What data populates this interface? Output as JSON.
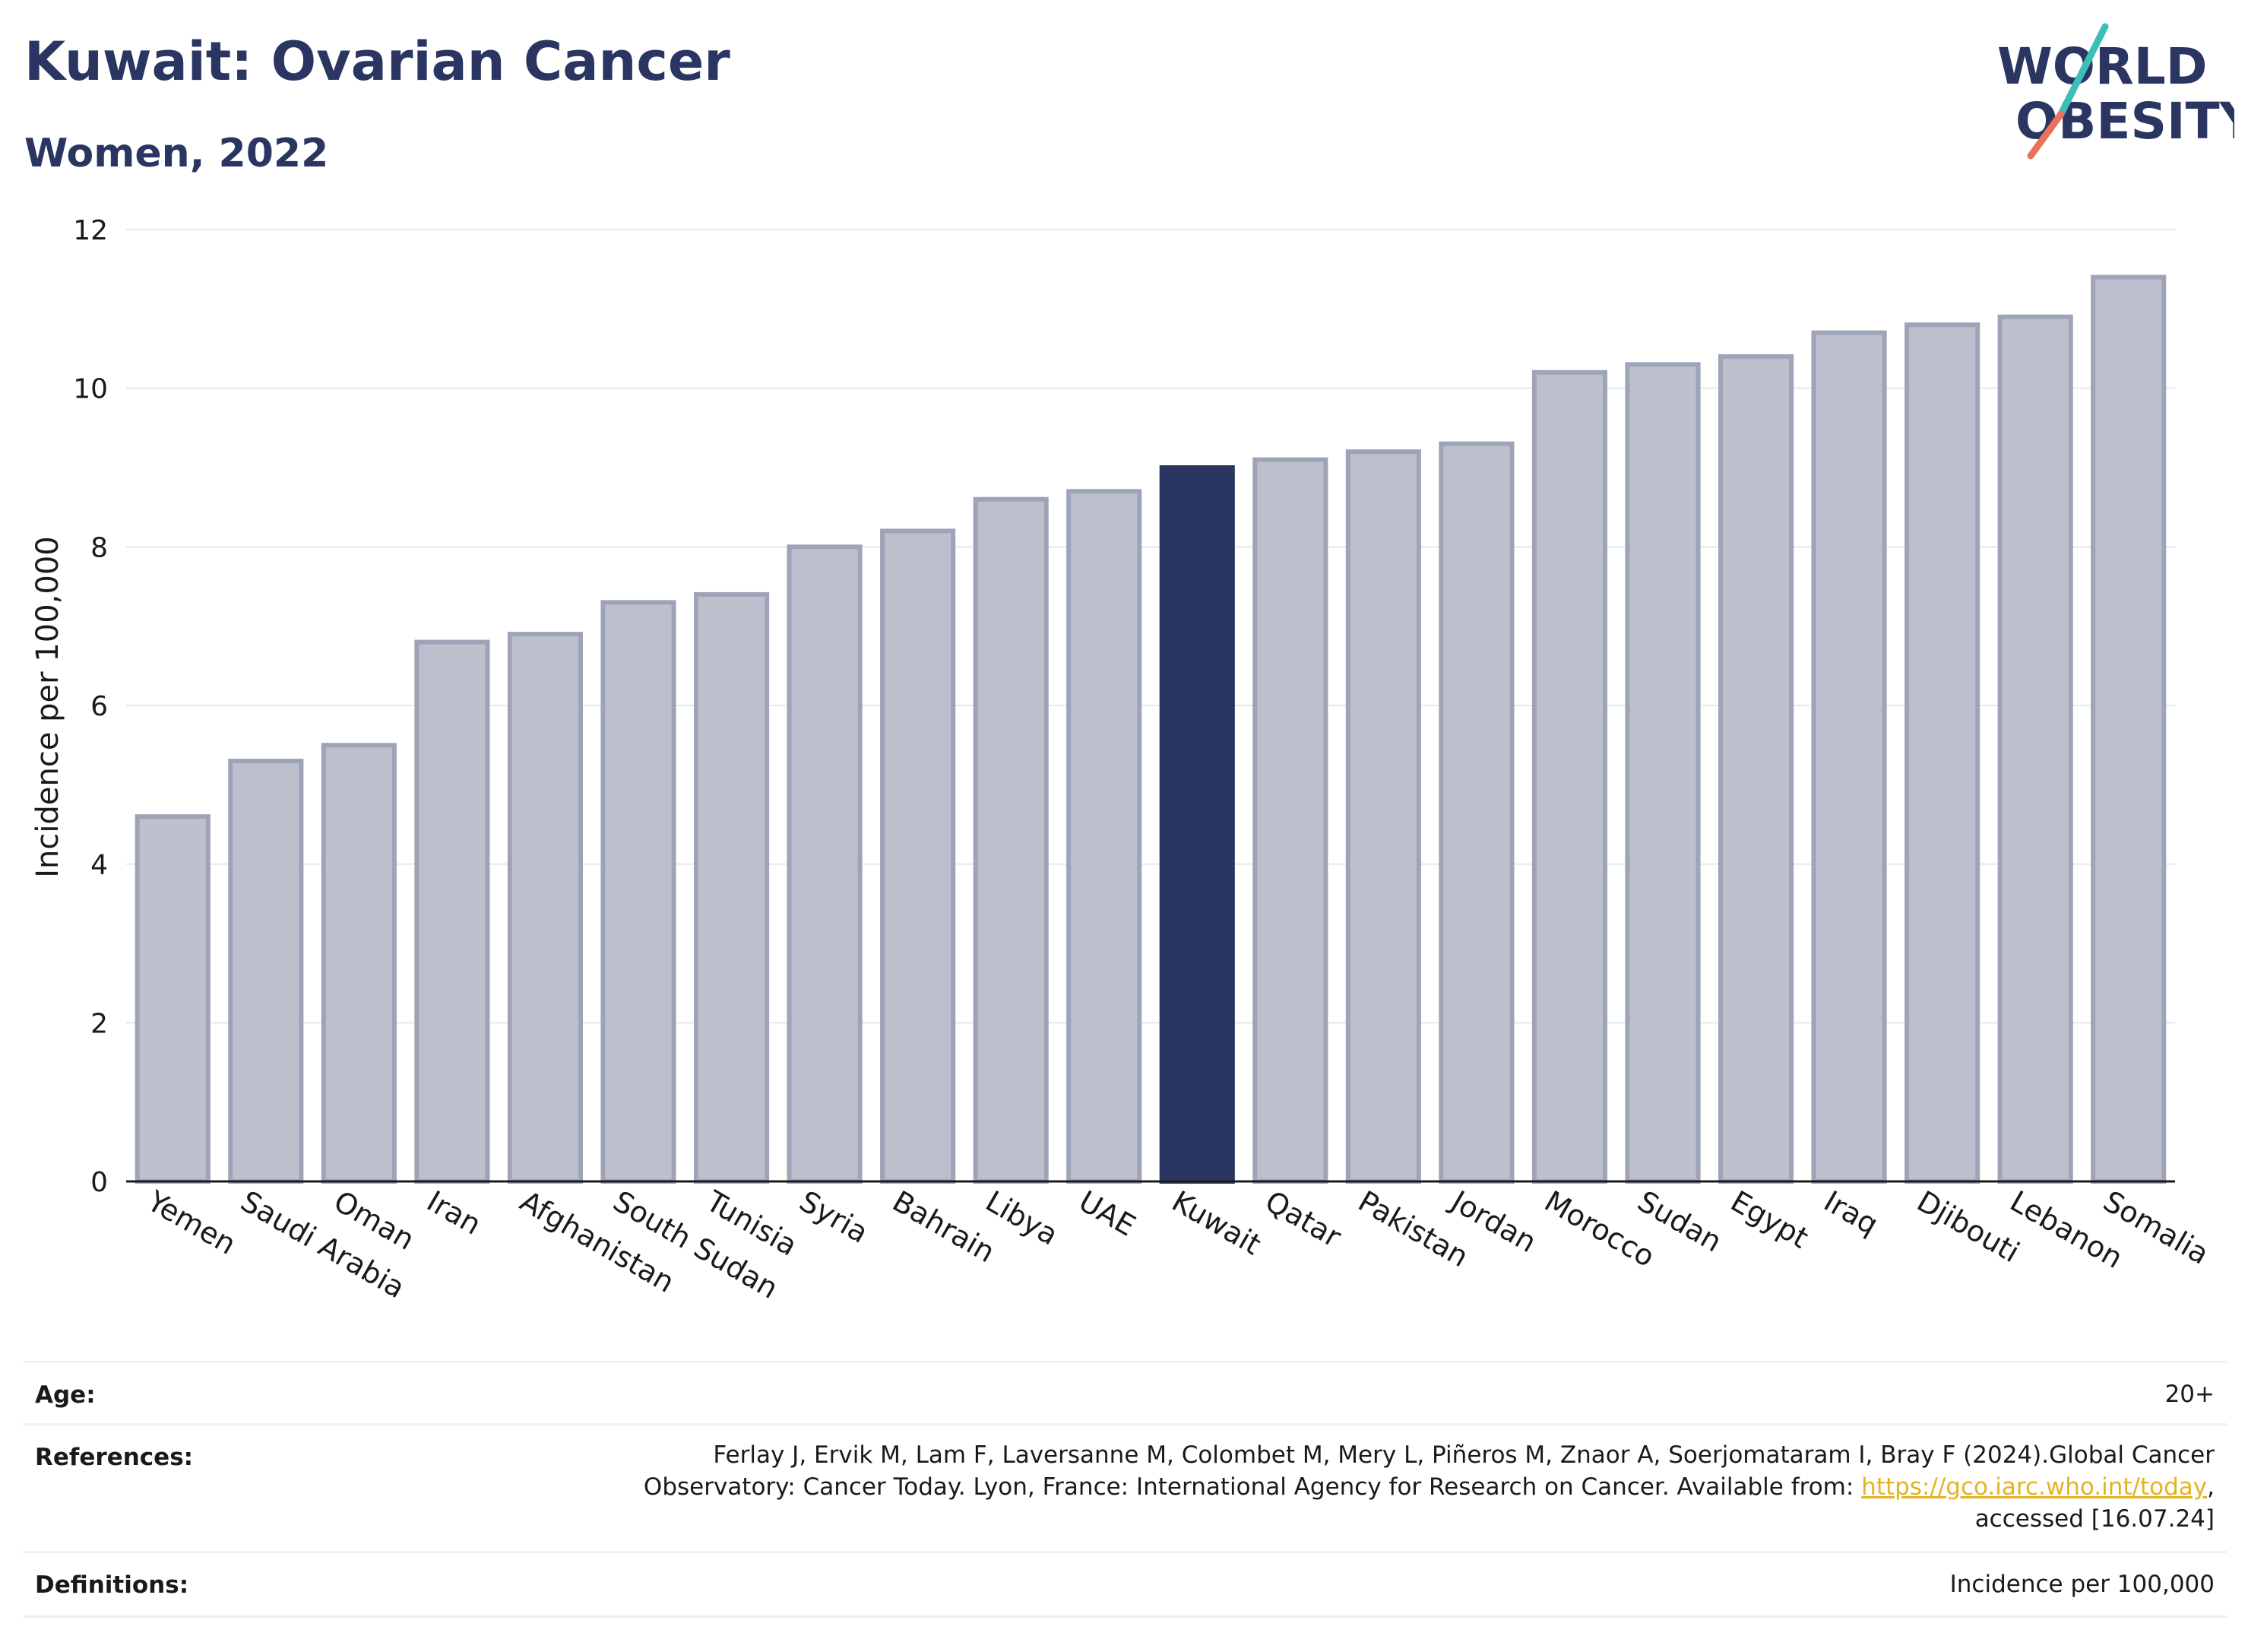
{
  "header": {
    "title": "Kuwait: Ovarian Cancer",
    "subtitle": "Women, 2022"
  },
  "logo": {
    "line1": "WORLD",
    "line2": "OBESITY",
    "slash_colors": [
      "#3bbfb8",
      "#e8735d"
    ]
  },
  "chart_data": {
    "type": "bar",
    "categories": [
      "Yemen",
      "Saudi Arabia",
      "Oman",
      "Iran",
      "Afghanistan",
      "South Sudan",
      "Tunisia",
      "Syria",
      "Bahrain",
      "Libya",
      "UAE",
      "Kuwait",
      "Qatar",
      "Pakistan",
      "Jordan",
      "Morocco",
      "Sudan",
      "Egypt",
      "Iraq",
      "Djibouti",
      "Lebanon",
      "Somalia"
    ],
    "values": [
      4.6,
      5.3,
      5.5,
      6.8,
      6.9,
      7.3,
      7.4,
      8.0,
      8.2,
      8.6,
      8.7,
      9.0,
      9.1,
      9.2,
      9.3,
      10.2,
      10.3,
      10.4,
      10.7,
      10.8,
      10.9,
      11.4
    ],
    "highlight": "Kuwait",
    "ylabel": "Incidence per 100,000",
    "ylim": [
      0,
      12
    ],
    "yticks": [
      0,
      2,
      4,
      6,
      8,
      10,
      12
    ],
    "grid": true,
    "colors": {
      "bar": "#bdc0cc",
      "bar_edge": "#9ea3b8",
      "highlight": "#2a3561"
    }
  },
  "info": {
    "age_label": "Age:",
    "age_value": "20+",
    "references_label": "References:",
    "references_line1": "Ferlay J, Ervik M, Lam F, Laversanne M, Colombet M, Mery L, Piñeros M, Znaor A, Soerjomataram I, Bray F (2024).Global Cancer",
    "references_line2_pre": "Observatory: Cancer Today. Lyon, France: International Agency for Research on Cancer. Available from: ",
    "references_link": "https://gco.iarc.who.int/today",
    "references_line2_post": ",",
    "references_line3": "accessed [16.07.24]",
    "definitions_label": "Definitions:",
    "definitions_value": "Incidence per 100,000"
  }
}
